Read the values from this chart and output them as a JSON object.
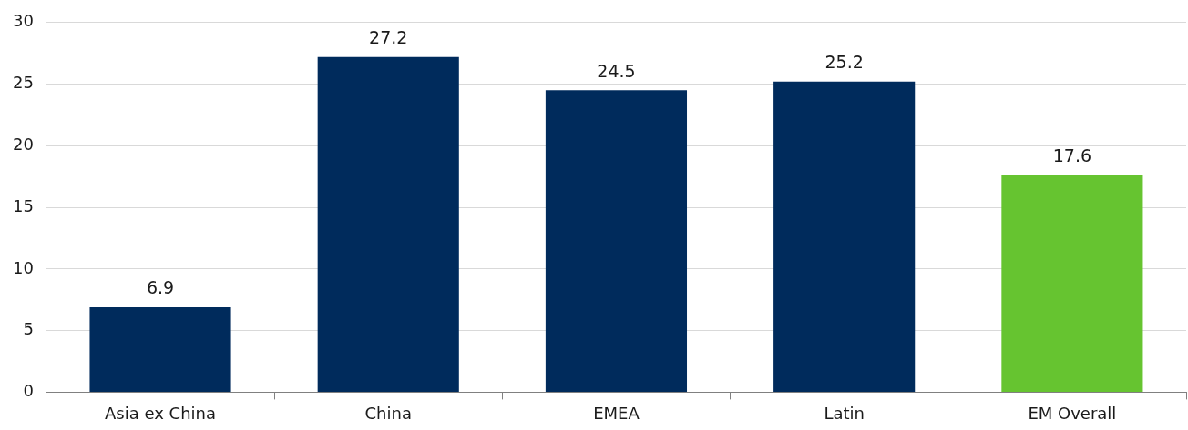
{
  "chart_data": {
    "type": "bar",
    "categories": [
      "Asia ex China",
      "China",
      "EMEA",
      "Latin",
      "EM Overall"
    ],
    "values": [
      6.9,
      27.2,
      24.5,
      25.2,
      17.6
    ],
    "colors": [
      "#002b5c",
      "#002b5c",
      "#002b5c",
      "#002b5c",
      "#66c430"
    ],
    "ylim": [
      0,
      30
    ],
    "yticks": [
      0,
      5,
      10,
      15,
      20,
      25,
      30
    ],
    "grid": "y",
    "data_labels": true,
    "legend": false
  }
}
